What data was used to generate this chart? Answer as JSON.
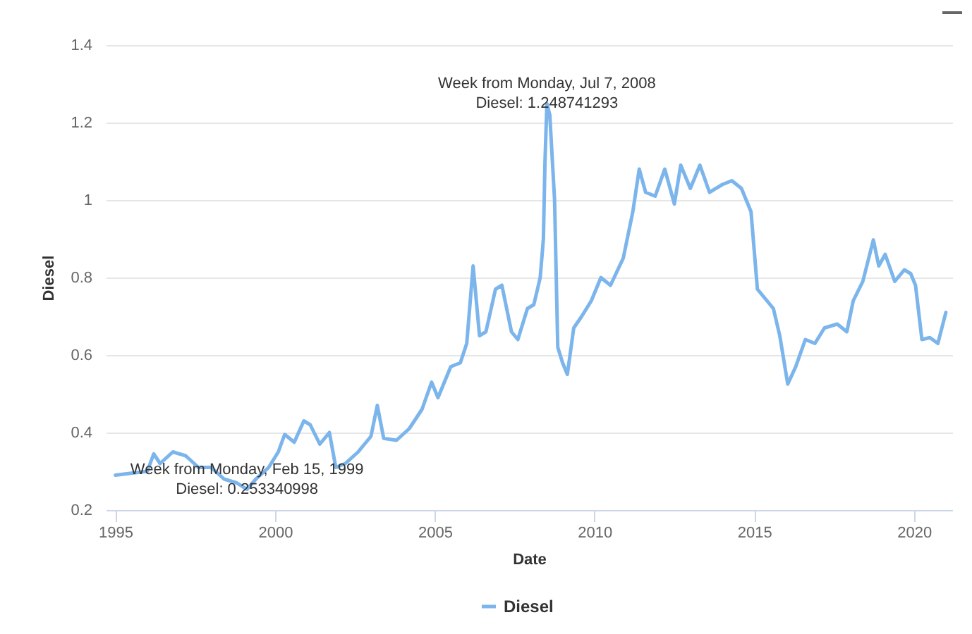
{
  "chart_data": {
    "type": "line",
    "xlabel": "Date",
    "ylabel": "Diesel",
    "x": [
      1995.0,
      1995.5,
      1996.0,
      1996.2,
      1996.4,
      1996.8,
      1997.2,
      1997.6,
      1998.0,
      1998.4,
      1998.8,
      1999.12,
      1999.4,
      1999.8,
      2000.1,
      2000.3,
      2000.6,
      2000.9,
      2001.1,
      2001.4,
      2001.7,
      2001.9,
      2002.2,
      2002.6,
      2003.0,
      2003.2,
      2003.4,
      2003.8,
      2004.2,
      2004.6,
      2004.9,
      2005.1,
      2005.5,
      2005.8,
      2006.0,
      2006.2,
      2006.4,
      2006.6,
      2006.9,
      2007.1,
      2007.4,
      2007.6,
      2007.9,
      2008.1,
      2008.3,
      2008.4,
      2008.45,
      2008.51,
      2008.6,
      2008.75,
      2008.85,
      2009.0,
      2009.15,
      2009.35,
      2009.6,
      2009.9,
      2010.2,
      2010.5,
      2010.9,
      2011.2,
      2011.4,
      2011.6,
      2011.9,
      2012.2,
      2012.5,
      2012.7,
      2013.0,
      2013.3,
      2013.6,
      2014.0,
      2014.3,
      2014.6,
      2014.9,
      2015.1,
      2015.4,
      2015.6,
      2015.8,
      2016.05,
      2016.3,
      2016.6,
      2016.9,
      2017.2,
      2017.6,
      2017.9,
      2018.1,
      2018.4,
      2018.73,
      2018.9,
      2019.1,
      2019.4,
      2019.7,
      2019.9,
      2020.05,
      2020.25,
      2020.5,
      2020.75,
      2021.0
    ],
    "series": [
      {
        "name": "Diesel",
        "color": "#7cb5ec",
        "values": [
          0.29,
          0.295,
          0.3,
          0.345,
          0.32,
          0.35,
          0.34,
          0.31,
          0.31,
          0.28,
          0.27,
          0.253340998,
          0.28,
          0.31,
          0.35,
          0.395,
          0.375,
          0.43,
          0.42,
          0.37,
          0.4,
          0.31,
          0.32,
          0.35,
          0.39,
          0.47,
          0.385,
          0.38,
          0.41,
          0.46,
          0.53,
          0.49,
          0.57,
          0.58,
          0.63,
          0.83,
          0.65,
          0.66,
          0.77,
          0.78,
          0.66,
          0.64,
          0.72,
          0.73,
          0.8,
          0.9,
          1.1,
          1.248741293,
          1.22,
          1.0,
          0.62,
          0.58,
          0.55,
          0.67,
          0.7,
          0.74,
          0.8,
          0.78,
          0.85,
          0.97,
          1.08,
          1.02,
          1.01,
          1.08,
          0.99,
          1.09,
          1.03,
          1.09,
          1.02,
          1.04,
          1.05,
          1.03,
          0.97,
          0.77,
          0.74,
          0.72,
          0.65,
          0.525,
          0.57,
          0.64,
          0.63,
          0.67,
          0.68,
          0.66,
          0.74,
          0.79,
          0.897,
          0.83,
          0.86,
          0.79,
          0.82,
          0.81,
          0.78,
          0.64,
          0.645,
          0.63,
          0.71
        ]
      }
    ],
    "xlim": [
      1994.7,
      2021.2
    ],
    "xticks": [
      1995,
      2000,
      2005,
      2010,
      2015,
      2020
    ],
    "ylim": [
      0.2,
      1.4
    ],
    "yticks": [
      0.2,
      0.4,
      0.6,
      0.8,
      1,
      1.2,
      1.4
    ],
    "grid": "y",
    "legend": "bottom",
    "marker": "none",
    "line_style": "solid",
    "annotations": [
      {
        "text": "Week from Monday, Feb 15, 1999\nDiesel: 0.253340998",
        "x": 1999.12,
        "y": 0.253340998
      },
      {
        "text": "Week from Monday, Jul 7, 2008\nDiesel: 1.248741293",
        "x": 2008.51,
        "y": 1.248741293
      }
    ]
  }
}
